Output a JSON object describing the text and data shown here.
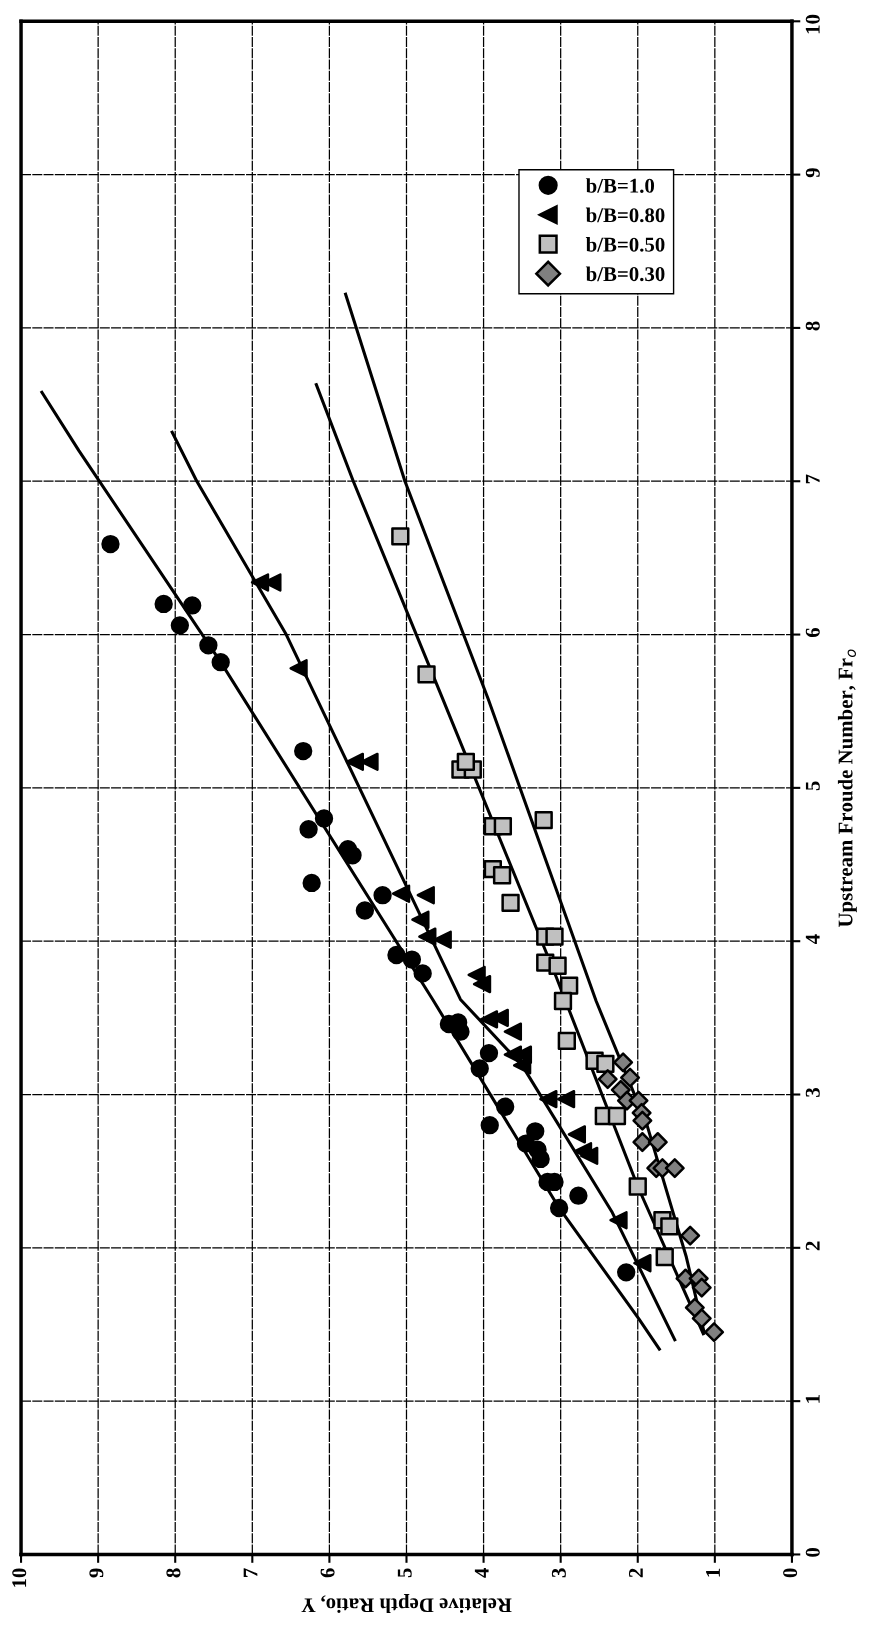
{
  "chart_data": {
    "type": "scatter",
    "xlabel": "Relative Depth Ratio, Y",
    "ylabel": "Upstream Froude Number, Fr$_{o}$",
    "xlim": [
      10,
      0
    ],
    "ylim": [
      0,
      10
    ],
    "xticks": [
      10,
      9,
      8,
      7,
      6,
      5,
      4,
      3,
      2,
      1,
      0
    ],
    "yticks": [
      0,
      1,
      2,
      3,
      4,
      5,
      6,
      7,
      8,
      9,
      10
    ],
    "grid": true,
    "legend": "top right",
    "series": [
      {
        "name": "b/B=1.0",
        "marker": "circle",
        "color": "#000000",
        "x": [
          8.84,
          8.15,
          7.78,
          7.94,
          7.57,
          7.41,
          6.34,
          6.07,
          6.27,
          5.76,
          5.7,
          6.23,
          5.31,
          5.54,
          5.13,
          4.93,
          4.79,
          4.45,
          4.33,
          4.3,
          4.05,
          3.93,
          3.72,
          3.92,
          3.33,
          3.45,
          3.3,
          3.26,
          3.17,
          3.08,
          2.77,
          3.02,
          2.15
        ],
        "values": [
          6.59,
          6.2,
          6.19,
          6.06,
          5.93,
          5.82,
          5.24,
          4.8,
          4.73,
          4.6,
          4.56,
          4.38,
          4.3,
          4.2,
          3.91,
          3.88,
          3.79,
          3.46,
          3.47,
          3.41,
          3.17,
          3.27,
          2.92,
          2.8,
          2.76,
          2.68,
          2.64,
          2.58,
          2.43,
          2.43,
          2.34,
          2.26,
          1.84
        ]
      },
      {
        "name": "b/B=0.80",
        "marker": "triangle",
        "color": "#000000",
        "x": [
          6.9,
          6.74,
          6.4,
          5.67,
          5.48,
          5.07,
          4.75,
          4.82,
          4.73,
          4.53,
          4.09,
          4.02,
          3.93,
          3.79,
          3.62,
          3.62,
          3.49,
          3.5,
          3.16,
          2.93,
          2.79,
          2.71,
          2.63,
          2.25,
          1.94
        ],
        "values": [
          6.34,
          6.34,
          5.78,
          5.17,
          5.17,
          4.31,
          4.3,
          4.14,
          4.03,
          4.01,
          3.78,
          3.72,
          3.49,
          3.5,
          3.41,
          3.26,
          3.26,
          3.19,
          2.97,
          2.97,
          2.74,
          2.63,
          2.6,
          2.18,
          1.9
        ]
      },
      {
        "name": "b/B=0.50",
        "marker": "square",
        "color": "#c0c0c0",
        "x": [
          5.08,
          4.74,
          4.3,
          4.14,
          4.23,
          3.22,
          3.88,
          3.75,
          3.88,
          3.76,
          3.65,
          3.2,
          3.08,
          3.2,
          3.04,
          2.89,
          2.97,
          2.92,
          2.56,
          2.42,
          2.44,
          2.27,
          2.0,
          1.68,
          1.59,
          1.65
        ],
        "values": [
          6.64,
          5.74,
          5.12,
          5.12,
          5.17,
          4.79,
          4.75,
          4.75,
          4.47,
          4.43,
          4.25,
          4.03,
          4.03,
          3.86,
          3.84,
          3.71,
          3.61,
          3.35,
          3.22,
          3.2,
          2.86,
          2.86,
          2.4,
          2.18,
          2.14,
          1.94
        ]
      },
      {
        "name": "b/B=0.30",
        "marker": "diamond",
        "color": "#808080",
        "x": [
          2.19,
          2.39,
          2.1,
          2.22,
          2.14,
          1.99,
          1.95,
          1.94,
          1.94,
          1.74,
          1.76,
          1.68,
          1.52,
          1.32,
          1.38,
          1.21,
          1.17,
          1.26,
          1.17,
          1.01
        ],
        "values": [
          3.21,
          3.1,
          3.11,
          3.03,
          2.96,
          2.96,
          2.88,
          2.83,
          2.69,
          2.69,
          2.52,
          2.52,
          2.52,
          2.08,
          1.8,
          1.8,
          1.74,
          1.61,
          1.54,
          1.45
        ]
      },
      {
        "type": "line",
        "marker": "none",
        "color": "#000000",
        "x": [
          9.73,
          9.25,
          7.41,
          4.66,
          3.02,
          1.99,
          1.72
        ],
        "values": [
          7.58,
          7.2,
          5.82,
          3.62,
          2.26,
          1.54,
          1.34
        ]
      },
      {
        "type": "line",
        "marker": "none",
        "color": "#000000",
        "x": [
          8.04,
          7.72,
          6.56,
          4.3,
          3.5,
          2.33,
          1.52
        ],
        "values": [
          7.32,
          7.0,
          6.0,
          3.62,
          3.19,
          2.23,
          1.4
        ]
      },
      {
        "type": "line",
        "marker": "none",
        "color": "#000000",
        "x": [
          6.17,
          5.69,
          4.53,
          3.06,
          2.0,
          1.15
        ],
        "values": [
          7.63,
          7.0,
          5.58,
          3.77,
          2.4,
          1.44
        ]
      },
      {
        "type": "line",
        "marker": "none",
        "color": "#000000",
        "x": [
          5.79,
          5.02,
          3.94,
          2.54,
          1.88,
          1.37,
          1.14
        ],
        "values": [
          8.22,
          7.0,
          5.58,
          3.61,
          2.8,
          1.94,
          1.45
        ]
      }
    ]
  }
}
